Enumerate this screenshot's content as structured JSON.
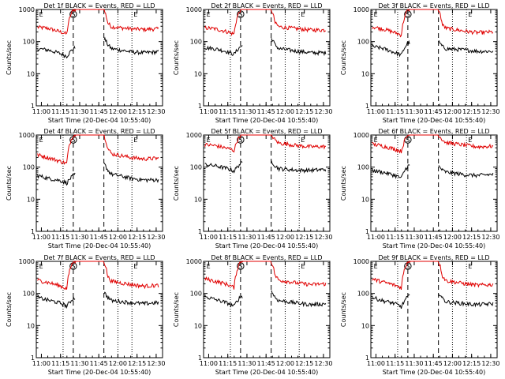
{
  "panels": [
    {
      "title": "Det 1f BLACK = Events, RED = LLD",
      "xlabel": "Start Time (20-Dec-04 10:55:40)",
      "ylabel": "Counts/sec"
    },
    {
      "title": "Det 2f BLACK = Events, RED = LLD",
      "xlabel": "Start Time (20-Dec-04 10:55:40)",
      "ylabel": "Counts/sec"
    },
    {
      "title": "Det 3f BLACK = Events, RED = LLD",
      "xlabel": "Start Time (20-Dec-04 10:55:40)",
      "ylabel": "Counts/sec"
    },
    {
      "title": "Det 4f BLACK = Events, RED = LLD",
      "xlabel": "Start Time (20-Dec-04 10:55:40)",
      "ylabel": "Counts/sec"
    },
    {
      "title": "Det 5f BLACK = Events, RED = LLD",
      "xlabel": "Start Time (20-Dec-04 10:55:40)",
      "ylabel": "Counts/sec"
    },
    {
      "title": "Det 6f BLACK = Events, RED = LLD",
      "xlabel": "Start Time (20-Dec-04 10:55:40)",
      "ylabel": "Counts/sec"
    },
    {
      "title": "Det 7f BLACK = Events, RED = LLD",
      "xlabel": "Start Time (20-Dec-04 10:55:40)",
      "ylabel": "Counts/sec"
    },
    {
      "title": "Det 8f BLACK = Events, RED = LLD",
      "xlabel": "Start Time (20-Dec-04 10:55:40)",
      "ylabel": "Counts/sec"
    },
    {
      "title": "Det 9f BLACK = Events, RED = LLD",
      "xlabel": "Start Time (20-Dec-04 10:55:40)",
      "ylabel": "Counts/sec"
    }
  ],
  "colors": {
    "events": "#000000",
    "lld": "#e00000"
  },
  "chart_data": {
    "type": "line",
    "y_scale": "log",
    "ylim": [
      1,
      1000
    ],
    "y_ticks": [
      "1",
      "10",
      "100",
      "1000"
    ],
    "x_ticks": [
      "11:00",
      "11:15",
      "11:30",
      "11:45",
      "12:00",
      "12:15",
      "12:30"
    ],
    "x_tick_minutes": [
      0,
      15,
      30,
      45,
      60,
      75,
      90
    ],
    "xlim_minutes": [
      -4,
      95
    ],
    "markers": [
      {
        "label": "E",
        "minute": -3,
        "line": "none"
      },
      {
        "label": "",
        "minute": 17,
        "line": "dotted"
      },
      {
        "label": "S",
        "minute": 25,
        "line": "dashed"
      },
      {
        "label": "",
        "minute": 49,
        "line": "dashed"
      },
      {
        "label": "",
        "minute": 60,
        "line": "dotted"
      },
      {
        "label": "E",
        "minute": 71,
        "line": "dotted"
      }
    ],
    "gap_minutes": [
      27,
      49
    ],
    "series": [
      {
        "name": "BLACK = Events",
        "key": "events"
      },
      {
        "name": "RED = LLD",
        "key": "lld"
      }
    ],
    "panels": [
      {
        "det": "1f",
        "events": {
          "t": [
            -3,
            5,
            15,
            20,
            25,
            49,
            52,
            55,
            70,
            80,
            92
          ],
          "v": [
            60,
            55,
            42,
            35,
            60,
            130,
            80,
            60,
            48,
            45,
            48
          ]
        },
        "lld": {
          "t": [
            -3,
            5,
            15,
            20,
            25,
            49,
            52,
            55,
            70,
            80,
            92
          ],
          "v": [
            280,
            260,
            200,
            170,
            1000,
            1000,
            380,
            290,
            250,
            240,
            250
          ]
        }
      },
      {
        "det": "2f",
        "events": {
          "t": [
            -3,
            5,
            15,
            20,
            25,
            49,
            52,
            55,
            70,
            80,
            92
          ],
          "v": [
            65,
            60,
            48,
            40,
            70,
            130,
            80,
            60,
            50,
            45,
            45
          ]
        },
        "lld": {
          "t": [
            -3,
            5,
            15,
            20,
            25,
            49,
            52,
            55,
            70,
            80,
            92
          ],
          "v": [
            270,
            250,
            200,
            170,
            1000,
            1000,
            380,
            290,
            250,
            230,
            230
          ]
        }
      },
      {
        "det": "3f",
        "events": {
          "t": [
            -3,
            5,
            15,
            20,
            25,
            49,
            52,
            55,
            70,
            80,
            92
          ],
          "v": [
            70,
            62,
            45,
            38,
            90,
            100,
            70,
            60,
            55,
            50,
            50
          ]
        },
        "lld": {
          "t": [
            -3,
            5,
            15,
            20,
            25,
            49,
            52,
            55,
            70,
            80,
            92
          ],
          "v": [
            290,
            250,
            190,
            160,
            1000,
            1000,
            330,
            260,
            210,
            190,
            200
          ]
        }
      },
      {
        "det": "4f",
        "events": {
          "t": [
            -3,
            5,
            15,
            20,
            25,
            49,
            52,
            55,
            70,
            80,
            92
          ],
          "v": [
            55,
            45,
            38,
            32,
            55,
            130,
            80,
            60,
            45,
            40,
            40
          ]
        },
        "lld": {
          "t": [
            -3,
            5,
            15,
            20,
            25,
            49,
            52,
            55,
            70,
            80,
            92
          ],
          "v": [
            240,
            200,
            150,
            130,
            1000,
            1000,
            380,
            260,
            200,
            180,
            190
          ]
        }
      },
      {
        "det": "5f",
        "events": {
          "t": [
            -3,
            5,
            15,
            20,
            25,
            49,
            52,
            55,
            70,
            80,
            92
          ],
          "v": [
            120,
            110,
            90,
            75,
            130,
            160,
            110,
            90,
            80,
            80,
            85
          ]
        },
        "lld": {
          "t": [
            -3,
            5,
            15,
            20,
            25,
            49,
            52,
            55,
            70,
            80,
            92
          ],
          "v": [
            500,
            470,
            380,
            330,
            1000,
            1000,
            700,
            560,
            470,
            430,
            440
          ]
        }
      },
      {
        "det": "6f",
        "events": {
          "t": [
            -3,
            5,
            15,
            20,
            25,
            49,
            52,
            55,
            70,
            80,
            92
          ],
          "v": [
            80,
            70,
            55,
            45,
            110,
            110,
            80,
            70,
            58,
            55,
            60
          ]
        },
        "lld": {
          "t": [
            -3,
            5,
            15,
            20,
            25,
            49,
            52,
            55,
            70,
            80,
            92
          ],
          "v": [
            520,
            460,
            360,
            310,
            1000,
            1000,
            720,
            580,
            480,
            430,
            450
          ]
        }
      },
      {
        "det": "7f",
        "events": {
          "t": [
            -3,
            5,
            15,
            20,
            25,
            49,
            52,
            55,
            70,
            80,
            92
          ],
          "v": [
            75,
            62,
            50,
            40,
            70,
            110,
            75,
            60,
            52,
            48,
            52
          ]
        },
        "lld": {
          "t": [
            -3,
            5,
            15,
            20,
            25,
            49,
            52,
            55,
            70,
            80,
            92
          ],
          "v": [
            260,
            220,
            170,
            140,
            1000,
            1000,
            330,
            240,
            190,
            170,
            180
          ]
        }
      },
      {
        "det": "8f",
        "events": {
          "t": [
            -3,
            5,
            15,
            20,
            25,
            49,
            52,
            55,
            70,
            80,
            92
          ],
          "v": [
            80,
            65,
            50,
            40,
            80,
            120,
            75,
            60,
            50,
            45,
            48
          ]
        },
        "lld": {
          "t": [
            -3,
            5,
            15,
            20,
            25,
            49,
            52,
            55,
            70,
            80,
            92
          ],
          "v": [
            290,
            240,
            190,
            150,
            1000,
            1000,
            360,
            260,
            210,
            190,
            200
          ]
        }
      },
      {
        "det": "9f",
        "events": {
          "t": [
            -3,
            5,
            15,
            20,
            25,
            49,
            52,
            55,
            70,
            80,
            92
          ],
          "v": [
            75,
            60,
            48,
            38,
            80,
            110,
            70,
            55,
            48,
            45,
            48
          ]
        },
        "lld": {
          "t": [
            -3,
            5,
            15,
            20,
            25,
            49,
            52,
            55,
            70,
            80,
            92
          ],
          "v": [
            280,
            230,
            180,
            150,
            1000,
            1000,
            350,
            250,
            200,
            180,
            190
          ]
        }
      }
    ]
  }
}
